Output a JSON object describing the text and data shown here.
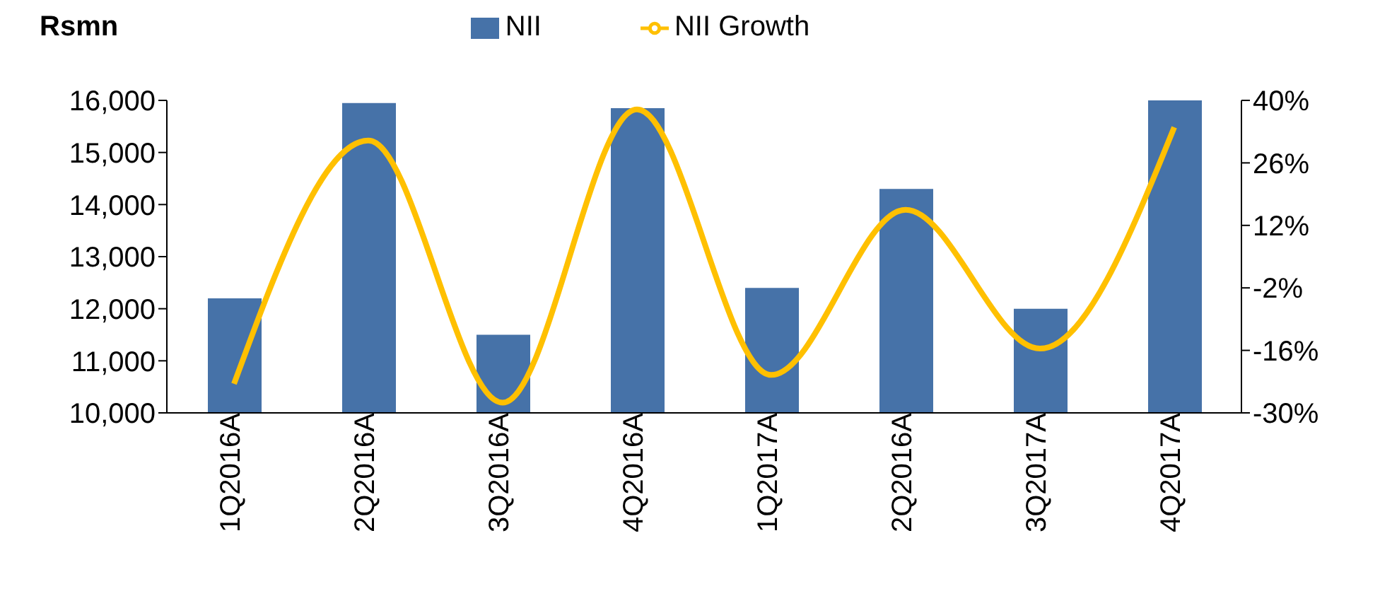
{
  "chart_data": {
    "type": "bar",
    "ylabel": "Rsmn",
    "categories": [
      "1Q2016A",
      "2Q2016A",
      "3Q2016A",
      "4Q2016A",
      "1Q2017A",
      "2Q2016A",
      "3Q2017A",
      "4Q2017A"
    ],
    "series": [
      {
        "name": "NII",
        "color": "#4672a8",
        "values": [
          12200,
          15950,
          11500,
          15850,
          12400,
          14300,
          12000,
          16000
        ]
      },
      {
        "name": "NII Growth",
        "type": "line",
        "axis": "y2",
        "color": "#ffc000",
        "values": [
          -23.5,
          31,
          -27.7,
          38,
          -21.5,
          15.5,
          -15.6,
          34
        ]
      }
    ],
    "ylim": [
      10000,
      16000
    ],
    "yticks": [
      {
        "value": 10000,
        "label": "10,000"
      },
      {
        "value": 11000,
        "label": "11,000"
      },
      {
        "value": 12000,
        "label": "12,000"
      },
      {
        "value": 13000,
        "label": "13,000"
      },
      {
        "value": 14000,
        "label": "14,000"
      },
      {
        "value": 15000,
        "label": "15,000"
      },
      {
        "value": 16000,
        "label": "16,000"
      }
    ],
    "y2lim": [
      -30,
      40
    ],
    "y2ticks": [
      {
        "value": -30,
        "label": "-30%"
      },
      {
        "value": -16,
        "label": "-16%"
      },
      {
        "value": -2,
        "label": "-2%"
      },
      {
        "value": 12,
        "label": "12%"
      },
      {
        "value": 26,
        "label": "26%"
      },
      {
        "value": 40,
        "label": "40%"
      }
    ],
    "legend": "top",
    "marker": "none"
  }
}
